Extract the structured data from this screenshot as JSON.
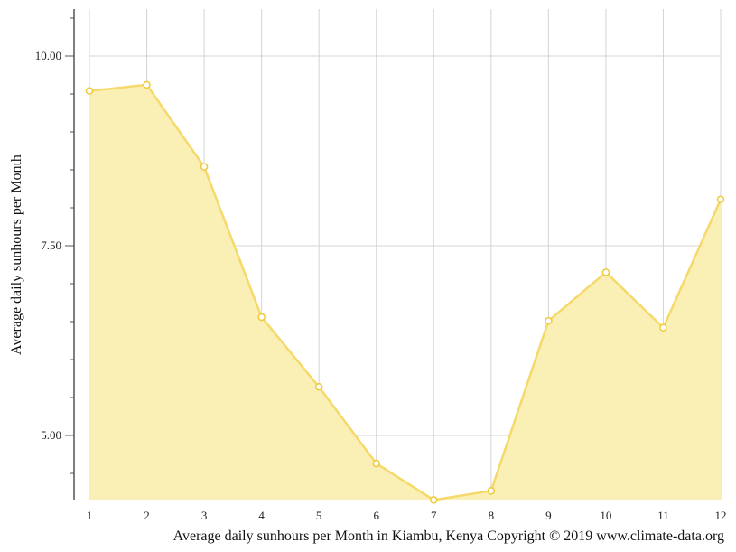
{
  "chart_data": {
    "type": "area",
    "title": "Average daily sunhours per Month in Kiambu, Kenya Copyright © 2019 www.climate-data.org",
    "xlabel": "Average daily sunhours per Month in Kiambu, Kenya Copyright © 2019 www.climate-data.org",
    "ylabel": "Average daily sunhours per Month",
    "categories": [
      "1",
      "2",
      "3",
      "4",
      "5",
      "6",
      "7",
      "8",
      "9",
      "10",
      "11",
      "12"
    ],
    "series": [
      {
        "name": "Average daily sunhours",
        "values": [
          9.54,
          9.62,
          8.54,
          6.56,
          5.64,
          4.63,
          4.15,
          4.27,
          6.51,
          7.15,
          6.42,
          8.11
        ],
        "color": "#f5d96b",
        "fill": "#faeeb0"
      }
    ],
    "y_ticks": [
      "5.00",
      "7.50",
      "10.00"
    ],
    "y_tick_values": [
      5.0,
      7.5,
      10.0
    ],
    "y_minor_step": 0.5,
    "ylim": [
      4.14,
      10.6
    ],
    "grid": true,
    "legend": "none"
  },
  "colors": {
    "line": "#f5d96b",
    "fill": "#faeeb0",
    "grid": "#d4d4d4",
    "axis": "#555555"
  }
}
